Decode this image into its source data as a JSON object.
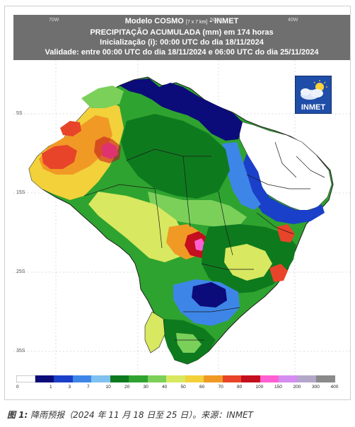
{
  "map": {
    "title_line1_a": "Modelo COSMO",
    "title_line1_small": "[7 x 7 km]",
    "title_line1_b": " - INMET",
    "title_line2": "PRECIPITAÇÃO ACUMULADA (mm) em 174 horas",
    "title_line3": "Inicialização (i): 00:00 UTC do dia 18/11/2024",
    "title_line4": "Validade: entre 00:00 UTC do dia 18/11/2024 e 06:00 UTC do dia 25/11/2024",
    "lon_labels": [
      "70W",
      "50W",
      "40W"
    ],
    "lat_labels": [
      "5S",
      "15S",
      "25S",
      "35S"
    ],
    "logo_text": "INMET"
  },
  "legend": {
    "labels": [
      "0",
      "1",
      "3",
      "7",
      "10",
      "20",
      "30",
      "40",
      "50",
      "60",
      "70",
      "80",
      "100",
      "150",
      "200",
      "300",
      "400"
    ],
    "colors": [
      "#ffffff",
      "#0b0b7a",
      "#1a3fc8",
      "#3d86e8",
      "#7fc1f0",
      "#0e7a1e",
      "#2fa32f",
      "#7bd05a",
      "#d8e860",
      "#f2d13a",
      "#f09a25",
      "#e8442a",
      "#c40f1e",
      "#ff5fd2",
      "#d38cf0",
      "#b3a7c9",
      "#8a8a8a"
    ]
  },
  "caption": {
    "label": "图 1:",
    "text": "  降雨预报（2024 年 11 月 18 日至 25 日）。来源：INMET"
  }
}
